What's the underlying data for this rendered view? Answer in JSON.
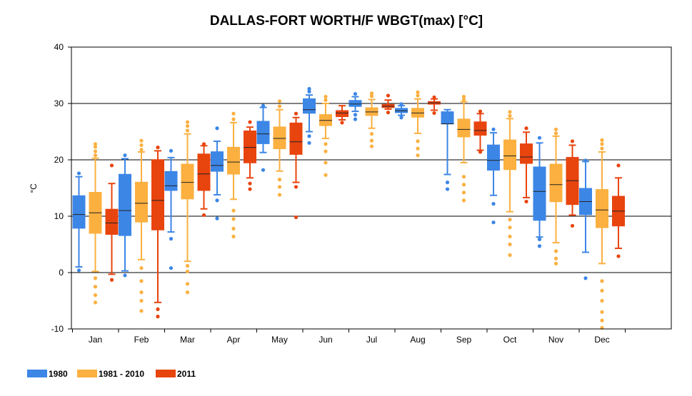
{
  "chart_data": {
    "type": "box",
    "title": "DALLAS-FORT WORTH/F WBGT(max) [°C]",
    "xlabel": "",
    "ylabel": "°C",
    "ylim": [
      -10,
      40
    ],
    "yticks": [
      -10,
      0,
      10,
      20,
      30,
      40
    ],
    "grid": true,
    "legend_position": "bottom-left",
    "categories": [
      "Jan",
      "Feb",
      "Mar",
      "Apr",
      "May",
      "Jun",
      "Jul",
      "Aug",
      "Sep",
      "Oct",
      "Nov",
      "Dec"
    ],
    "series": [
      {
        "name": "1980",
        "color": "#3c86e6",
        "boxes": [
          {
            "whisker_low": 1.0,
            "q1": 7.8,
            "median": 10.3,
            "q3": 13.7,
            "whisker_high": 17.0,
            "outliers": [
              0.4,
              17.6
            ]
          },
          {
            "whisker_low": 0.3,
            "q1": 6.5,
            "median": 11.0,
            "q3": 17.5,
            "whisker_high": 20.2,
            "outliers": [
              -0.5,
              20.8
            ]
          },
          {
            "whisker_low": 7.2,
            "q1": 14.5,
            "median": 15.4,
            "q3": 18.0,
            "whisker_high": 20.4,
            "outliers": [
              0.8,
              6.0,
              21.6
            ]
          },
          {
            "whisker_low": 13.8,
            "q1": 17.9,
            "median": 19.0,
            "q3": 21.5,
            "whisker_high": 23.3,
            "outliers": [
              9.6,
              12.8,
              25.6
            ]
          },
          {
            "whisker_low": 21.3,
            "q1": 22.8,
            "median": 24.6,
            "q3": 26.9,
            "whisker_high": 29.3,
            "outliers": [
              18.2,
              29.6
            ]
          },
          {
            "whisker_low": 25.0,
            "q1": 28.2,
            "median": 28.9,
            "q3": 30.9,
            "whisker_high": 31.5,
            "outliers": [
              23.0,
              24.2,
              32.1,
              32.6
            ]
          },
          {
            "whisker_low": 28.6,
            "q1": 29.4,
            "median": 29.9,
            "q3": 30.6,
            "whisker_high": 31.2,
            "outliers": [
              27.2,
              28.0,
              31.7
            ]
          },
          {
            "whisker_low": 27.9,
            "q1": 28.3,
            "median": 28.7,
            "q3": 29.2,
            "whisker_high": 29.6,
            "outliers": [
              27.5,
              29.9
            ]
          },
          {
            "whisker_low": 17.4,
            "q1": 26.3,
            "median": 26.4,
            "q3": 28.6,
            "whisker_high": 28.9,
            "outliers": [
              14.8,
              16.0
            ]
          },
          {
            "whisker_low": 13.7,
            "q1": 18.1,
            "median": 19.9,
            "q3": 22.7,
            "whisker_high": 24.8,
            "outliers": [
              8.9,
              12.2,
              25.4
            ]
          },
          {
            "whisker_low": 6.3,
            "q1": 9.2,
            "median": 14.4,
            "q3": 18.8,
            "whisker_high": 23.0,
            "outliers": [
              4.7,
              5.9,
              23.9
            ]
          },
          {
            "whisker_low": 3.6,
            "q1": 10.2,
            "median": 12.6,
            "q3": 15.0,
            "whisker_high": 19.7,
            "outliers": [
              -1.0,
              19.9
            ]
          }
        ]
      },
      {
        "name": "1981 - 2010",
        "color": "#fbb040",
        "boxes": [
          {
            "whisker_low": 0.2,
            "q1": 6.9,
            "median": 10.6,
            "q3": 14.3,
            "whisker_high": 20.3,
            "outliers": [
              -5.3,
              -4.0,
              -2.5,
              -1.0,
              20.8,
              21.5,
              22.3,
              22.8
            ]
          },
          {
            "whisker_low": 2.3,
            "q1": 8.9,
            "median": 12.3,
            "q3": 16.1,
            "whisker_high": 21.4,
            "outliers": [
              -6.8,
              -5.0,
              -3.5,
              -1.5,
              0.8,
              21.8,
              22.6,
              23.4
            ]
          },
          {
            "whisker_low": 2.0,
            "q1": 13.0,
            "median": 16.0,
            "q3": 19.3,
            "whisker_high": 24.6,
            "outliers": [
              -3.5,
              -2.0,
              0.2,
              1.2,
              25.2,
              26.0,
              26.7
            ]
          },
          {
            "whisker_low": 13.0,
            "q1": 17.4,
            "median": 19.6,
            "q3": 22.3,
            "whisker_high": 26.6,
            "outliers": [
              6.4,
              7.8,
              9.5,
              11.0,
              27.2,
              28.2
            ]
          },
          {
            "whisker_low": 18.0,
            "q1": 21.9,
            "median": 23.8,
            "q3": 25.9,
            "whisker_high": 28.9,
            "outliers": [
              13.8,
              15.2,
              16.5,
              29.5,
              30.4
            ]
          },
          {
            "whisker_low": 23.8,
            "q1": 26.0,
            "median": 27.0,
            "q3": 28.1,
            "whisker_high": 30.0,
            "outliers": [
              17.3,
              19.5,
              21.5,
              22.8,
              30.6,
              31.2
            ]
          },
          {
            "whisker_low": 25.6,
            "q1": 27.8,
            "median": 28.5,
            "q3": 29.3,
            "whisker_high": 30.7,
            "outliers": [
              22.4,
              23.4,
              24.6,
              31.3,
              31.8
            ]
          },
          {
            "whisker_low": 24.7,
            "q1": 27.5,
            "median": 28.3,
            "q3": 29.2,
            "whisker_high": 30.8,
            "outliers": [
              20.8,
              22.0,
              23.3,
              31.4,
              32.0
            ]
          },
          {
            "whisker_low": 19.5,
            "q1": 24.0,
            "median": 25.4,
            "q3": 27.3,
            "whisker_high": 30.3,
            "outliers": [
              12.8,
              14.2,
              15.6,
              17.0,
              30.7,
              31.2
            ]
          },
          {
            "whisker_low": 10.8,
            "q1": 18.2,
            "median": 20.7,
            "q3": 23.6,
            "whisker_high": 27.3,
            "outliers": [
              3.1,
              5.0,
              6.4,
              8.0,
              9.4,
              27.8,
              28.5
            ]
          },
          {
            "whisker_low": 5.3,
            "q1": 12.5,
            "median": 15.6,
            "q3": 19.3,
            "whisker_high": 24.2,
            "outliers": [
              1.6,
              2.5,
              3.8,
              24.7,
              25.4
            ]
          },
          {
            "whisker_low": 1.6,
            "q1": 7.9,
            "median": 11.1,
            "q3": 14.8,
            "whisker_high": 21.4,
            "outliers": [
              -9.8,
              -8.5,
              -7.0,
              -5.0,
              -3.2,
              -1.5,
              22.0,
              22.8,
              23.5
            ]
          }
        ]
      },
      {
        "name": "2011",
        "color": "#e8440e",
        "boxes": [
          {
            "whisker_low": -0.3,
            "q1": 6.7,
            "median": 8.8,
            "q3": 11.3,
            "whisker_high": 15.8,
            "outliers": [
              -1.3,
              19.0
            ]
          },
          {
            "whisker_low": -5.3,
            "q1": 7.5,
            "median": 12.8,
            "q3": 20.1,
            "whisker_high": 21.6,
            "outliers": [
              -7.8,
              -6.5,
              22.2
            ]
          },
          {
            "whisker_low": 11.3,
            "q1": 14.5,
            "median": 17.5,
            "q3": 21.1,
            "whisker_high": 22.5,
            "outliers": [
              10.2,
              22.8
            ]
          },
          {
            "whisker_low": 16.8,
            "q1": 19.4,
            "median": 22.2,
            "q3": 25.2,
            "whisker_high": 25.8,
            "outliers": [
              14.8,
              15.8,
              26.7
            ]
          },
          {
            "whisker_low": 16.0,
            "q1": 20.9,
            "median": 23.2,
            "q3": 26.6,
            "whisker_high": 27.5,
            "outliers": [
              9.8,
              15.2,
              28.2
            ]
          },
          {
            "whisker_low": 27.1,
            "q1": 27.6,
            "median": 28.3,
            "q3": 28.8,
            "whisker_high": 29.6,
            "outliers": [
              26.6
            ]
          },
          {
            "whisker_low": 29.0,
            "q1": 29.2,
            "median": 29.5,
            "q3": 29.9,
            "whisker_high": 30.6,
            "outliers": [
              28.4,
              31.4
            ]
          },
          {
            "whisker_low": 28.8,
            "q1": 29.8,
            "median": 30.1,
            "q3": 30.4,
            "whisker_high": 30.8,
            "outliers": [
              28.3,
              31.1
            ]
          },
          {
            "whisker_low": 21.7,
            "q1": 24.3,
            "median": 25.2,
            "q3": 26.8,
            "whisker_high": 28.2,
            "outliers": [
              21.4,
              28.6
            ]
          },
          {
            "whisker_low": 13.3,
            "q1": 19.3,
            "median": 20.5,
            "q3": 22.9,
            "whisker_high": 24.9,
            "outliers": [
              12.6,
              25.6
            ]
          },
          {
            "whisker_low": 10.2,
            "q1": 12.0,
            "median": 16.3,
            "q3": 20.5,
            "whisker_high": 22.6,
            "outliers": [
              8.3,
              23.3
            ]
          },
          {
            "whisker_low": 4.3,
            "q1": 8.2,
            "median": 10.9,
            "q3": 13.6,
            "whisker_high": 16.8,
            "outliers": [
              2.9,
              19.0
            ]
          }
        ]
      }
    ]
  }
}
